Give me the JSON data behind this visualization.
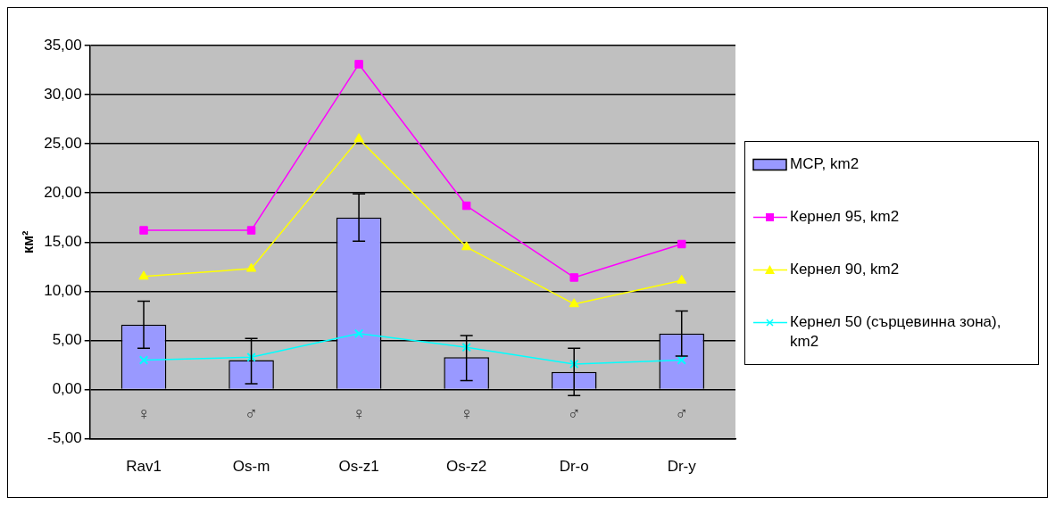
{
  "chart_data": {
    "type": "bar",
    "ylabel": "км²",
    "categories": [
      "Rav1",
      "Os-m",
      "Os-z1",
      "Os-z2",
      "Dr-o",
      "Dr-y"
    ],
    "series": [
      {
        "name": "MCP, km2",
        "color": "#9999ff",
        "values": [
          6.6,
          3.0,
          17.5,
          3.3,
          1.8,
          5.7
        ],
        "errors": [
          [
            4.2,
            9.0
          ],
          [
            0.6,
            5.2
          ],
          [
            15.1,
            19.9
          ],
          [
            0.9,
            5.5
          ],
          [
            -0.6,
            4.2
          ],
          [
            3.4,
            8.0
          ]
        ]
      },
      {
        "name": "Кернел 95, km2",
        "type": "line",
        "color": "#ff00ff",
        "marker": "square",
        "values": [
          16.2,
          16.2,
          33.1,
          18.7,
          11.4,
          14.8
        ]
      },
      {
        "name": "Кернел 90, km2",
        "type": "line",
        "color": "#ffff00",
        "marker": "triangle",
        "values": [
          11.5,
          12.3,
          25.5,
          14.5,
          8.7,
          11.1
        ]
      },
      {
        "name": "Кернел 50 (сърцевинна зона), km2",
        "type": "line",
        "color": "#00ffff",
        "marker": "cross",
        "values": [
          3.0,
          3.3,
          5.7,
          4.3,
          2.6,
          3.0
        ]
      }
    ],
    "ylim": [
      -5,
      35
    ],
    "yticks": [
      {
        "value": -5,
        "label": "-5,00"
      },
      {
        "value": 0,
        "label": "0,00"
      },
      {
        "value": 5,
        "label": "5,00"
      },
      {
        "value": 10,
        "label": "10,00"
      },
      {
        "value": 15,
        "label": "15,00"
      },
      {
        "value": 20,
        "label": "20,00"
      },
      {
        "value": 25,
        "label": "25,00"
      },
      {
        "value": 30,
        "label": "30,00"
      },
      {
        "value": 35,
        "label": "35,00"
      }
    ],
    "grid": "y",
    "legend": "right",
    "annotations": [
      "♀",
      "♂",
      "♀",
      "♀",
      "♂",
      "♂"
    ]
  }
}
